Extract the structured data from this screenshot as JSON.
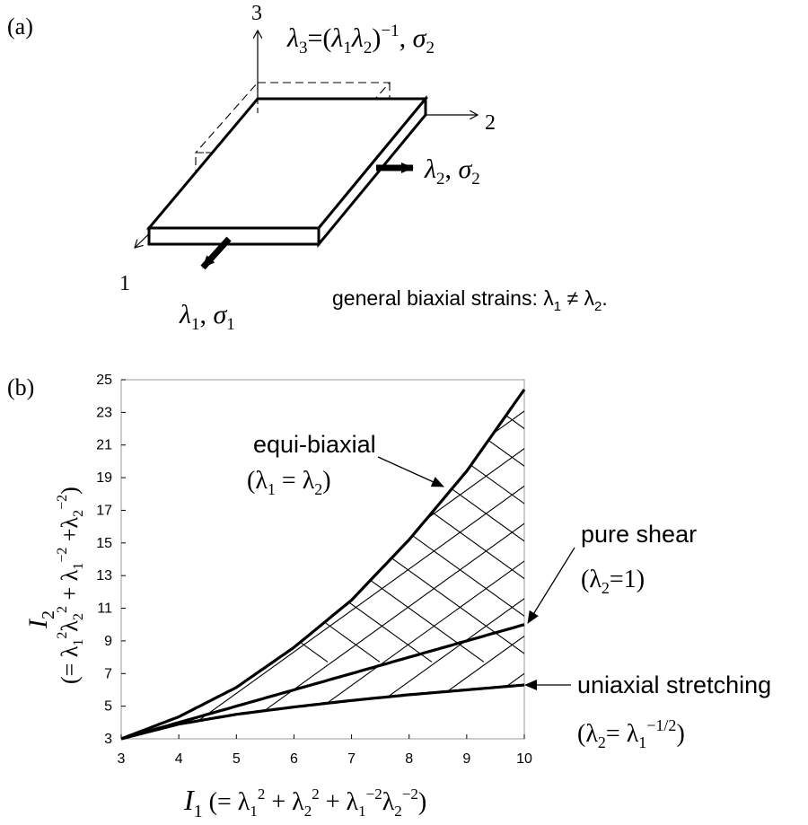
{
  "panel_a": {
    "label": "(a)",
    "axis1": "1",
    "axis2": "2",
    "axis3": "3",
    "lambda3_label": "λ3=(λ1λ2)−1, σ2",
    "lambda2_label": "λ2, σ2",
    "lambda1_label": "λ1, σ1",
    "caption": "general biaxial strains: λ1 ≠ λ2."
  },
  "panel_b": {
    "label": "(b)",
    "annotations": {
      "equi_biaxial": "equi-biaxial",
      "equi_biaxial_cond": "(λ1 = λ2)",
      "pure_shear": "pure shear",
      "pure_shear_cond": "(λ2=1)",
      "uniaxial": "uniaxial stretching",
      "uniaxial_cond": "(λ2= λ1−1/2)"
    }
  },
  "chart_data": {
    "type": "line",
    "xlabel": "I1 (= λ1² + λ2² + λ1⁻²λ2⁻²)",
    "ylabel": "I2 (= λ1²λ2² + λ1⁻² +λ2⁻²)",
    "xlim": [
      3,
      10
    ],
    "ylim": [
      3,
      25
    ],
    "x_ticks": [
      "3",
      "4",
      "5",
      "6",
      "7",
      "8",
      "9",
      "10"
    ],
    "y_ticks": [
      "3",
      "5",
      "7",
      "9",
      "11",
      "13",
      "15",
      "17",
      "19",
      "21",
      "23",
      "25"
    ],
    "series": [
      {
        "name": "equi-biaxial",
        "x": [
          3,
          4,
          5,
          6,
          7,
          8,
          9,
          10
        ],
        "y": [
          3,
          4.35,
          6.15,
          8.6,
          11.5,
          15.2,
          19.4,
          24.4
        ]
      },
      {
        "name": "pure shear",
        "x": [
          3,
          4,
          5,
          6,
          7,
          8,
          9,
          10
        ],
        "y": [
          3,
          4.0,
          5.0,
          6.0,
          7.0,
          8.0,
          9.0,
          10.0
        ]
      },
      {
        "name": "uniaxial stretching",
        "x": [
          3,
          4,
          5,
          6,
          7,
          8,
          9,
          10
        ],
        "y": [
          3,
          3.9,
          4.5,
          4.95,
          5.35,
          5.7,
          6.0,
          6.3
        ]
      }
    ],
    "grid": false
  }
}
